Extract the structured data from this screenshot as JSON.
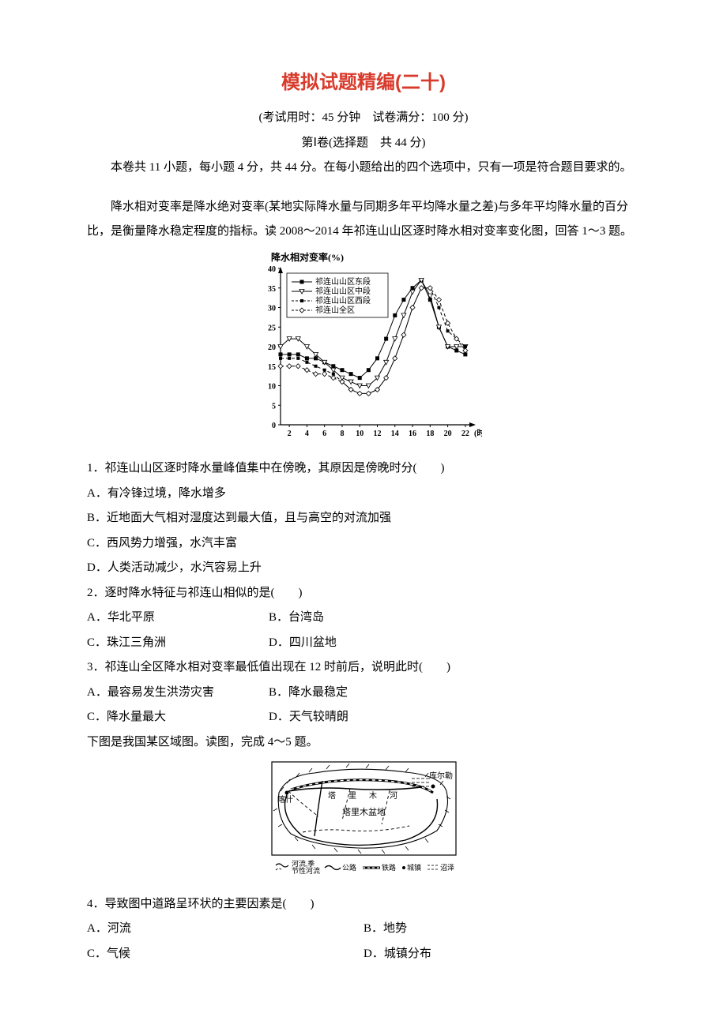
{
  "title": "模拟试题精编(二十)",
  "subtitle1": "(考试用时：45 分钟　试卷满分：100 分)",
  "subtitle2": "第Ⅰ卷(选择题　共 44 分)",
  "instruction": "本卷共 11 小题，每小题 4 分，共 44 分。在每小题给出的四个选项中，只有一项是符合题目要求的。",
  "passage1": "降水相对变率是降水绝对变率(某地实际降水量与同期多年平均降水量之差)与多年平均降水量的百分比，是衡量降水稳定程度的指标。读 2008～2014 年祁连山山区逐时降水相对变率变化图，回答 1～3 题。",
  "chart1": {
    "type": "line",
    "title": "降水相对变率(%)",
    "xlabel": "(时)",
    "xlim": [
      1,
      23
    ],
    "ylim": [
      0,
      40
    ],
    "xticks": [
      2,
      4,
      6,
      8,
      10,
      12,
      14,
      16,
      18,
      20,
      22
    ],
    "yticks": [
      0,
      5,
      10,
      15,
      20,
      25,
      30,
      35,
      40
    ],
    "title_fontsize": 12,
    "tick_fontsize": 10,
    "background_color": "#ffffff",
    "axis_color": "#000000",
    "line_width": 1,
    "legend": {
      "position": "top-left-inside",
      "border": true,
      "items": [
        {
          "label": "祁连山山区东段",
          "marker": "filled-square",
          "color": "#000000",
          "line": "solid"
        },
        {
          "label": "祁连山山区中段",
          "marker": "open-triangle-down",
          "color": "#000000",
          "line": "solid"
        },
        {
          "label": "祁连山山区西段",
          "marker": "filled-square-small",
          "color": "#000000",
          "line": "dashed"
        },
        {
          "label": "祁连山全区",
          "marker": "open-diamond",
          "color": "#000000",
          "line": "dashed"
        }
      ]
    },
    "series": {
      "east": [
        18,
        18,
        18,
        17,
        17,
        16,
        15,
        14,
        13,
        12,
        14,
        17,
        22,
        28,
        32,
        35,
        37,
        32,
        25,
        20,
        19,
        18
      ],
      "mid": [
        20,
        22,
        22,
        20,
        18,
        16,
        14,
        12,
        11,
        10,
        10,
        12,
        16,
        22,
        28,
        34,
        37,
        33,
        25,
        20,
        20,
        20
      ],
      "west": [
        17,
        17,
        17,
        16,
        15,
        14,
        13,
        11,
        9,
        8,
        8,
        9,
        12,
        17,
        23,
        30,
        35,
        35,
        30,
        24,
        22,
        20
      ],
      "all": [
        15,
        15,
        15,
        14,
        13,
        13,
        12,
        11,
        9,
        8,
        8,
        9,
        12,
        17,
        23,
        30,
        35,
        35,
        32,
        26,
        22,
        19
      ]
    },
    "x_values": [
      1,
      2,
      3,
      4,
      5,
      6,
      7,
      8,
      9,
      10,
      11,
      12,
      13,
      14,
      15,
      16,
      17,
      18,
      19,
      20,
      21,
      22
    ]
  },
  "q1": {
    "stem": "1．祁连山山区逐时降水量峰值集中在傍晚，其原因是傍晚时分(　　)",
    "A": "A．有冷锋过境，降水增多",
    "B": "B．近地面大气相对湿度达到最大值，且与高空的对流加强",
    "C": "C．西风势力增强，水汽丰富",
    "D": "D．人类活动减少，水汽容易上升"
  },
  "q2": {
    "stem": "2．逐时降水特征与祁连山相似的是(　　)",
    "A": "A．华北平原",
    "B": "B．台湾岛",
    "C": "C．珠江三角洲",
    "D": "D．四川盆地"
  },
  "q3": {
    "stem": "3．祁连山全区降水相对变率最低值出现在 12 时前后，说明此时(　　)",
    "A": "A．最容易发生洪涝灾害",
    "B": "B．降水最稳定",
    "C": "C．降水量最大",
    "D": "D．天气较晴朗"
  },
  "passage2": "下图是我国某区域图。读图，完成 4～5 题。",
  "map1": {
    "type": "map",
    "border_color": "#000000",
    "line_width": 1,
    "labels": {
      "kashgar": "喀什",
      "korla": "库尔勒",
      "river": "塔　里　木　河",
      "basin": "塔里木盆地"
    },
    "legend_items": [
      {
        "symbol": "river",
        "label_top": "河流,季",
        "label_bottom": "节性河流"
      },
      {
        "symbol": "road",
        "label": "公路"
      },
      {
        "symbol": "rail",
        "label": "铁路"
      },
      {
        "symbol": "town",
        "label": "城镇"
      },
      {
        "symbol": "marsh",
        "label": "沼泽"
      }
    ],
    "colors": {
      "land": "#ffffff",
      "line": "#000000"
    }
  },
  "q4": {
    "stem": "4．导致图中道路呈环状的主要因素是(　　)",
    "A": "A．河流",
    "B": "B．地势",
    "C": "C．气候",
    "D": "D．城镇分布"
  }
}
